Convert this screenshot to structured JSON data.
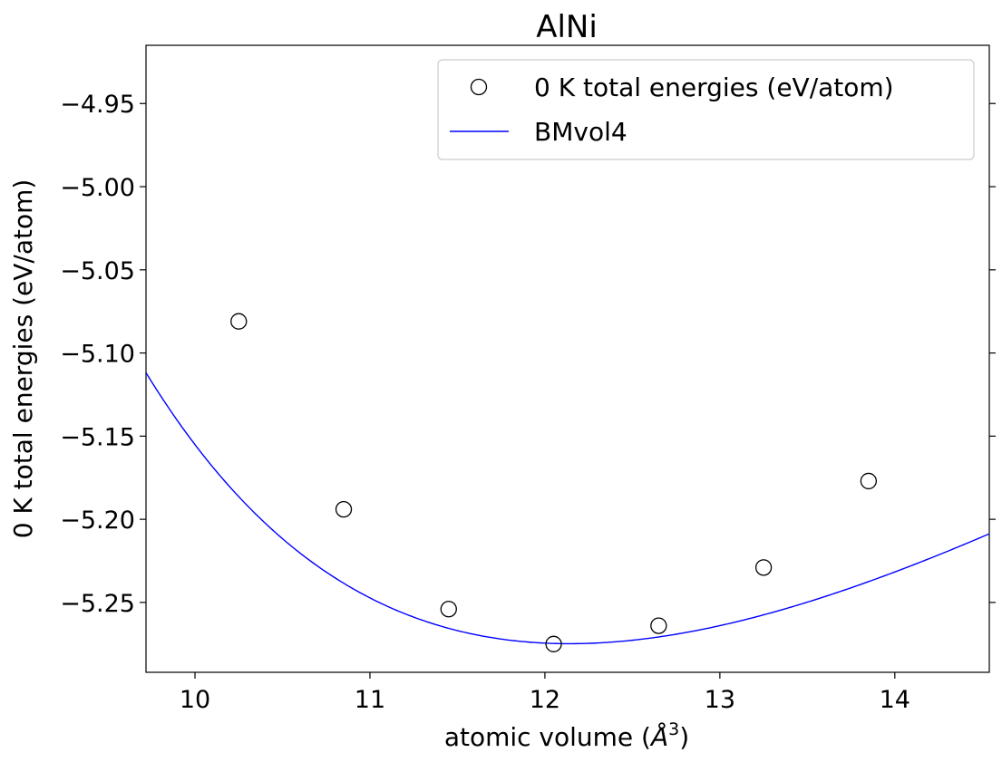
{
  "chart_data": {
    "type": "scatter",
    "title": "AlNi",
    "xlabel": "atomic volume (Å³)",
    "ylabel": "0 K total energies (eV/atom)",
    "xlim": [
      9.72,
      14.54
    ],
    "ylim": [
      -5.292,
      -4.915
    ],
    "xticks": [
      10,
      11,
      12,
      13,
      14
    ],
    "xtick_labels": [
      "10",
      "11",
      "12",
      "13",
      "14"
    ],
    "yticks": [
      -5.25,
      -5.2,
      -5.15,
      -5.1,
      -5.05,
      -5.0,
      -4.95
    ],
    "ytick_labels": [
      "−5.25",
      "−5.20",
      "−5.15",
      "−5.10",
      "−5.05",
      "−5.00",
      "−4.95"
    ],
    "grid": false,
    "legend_position": "upper-right",
    "series": [
      {
        "name": "0 K total energies (eV/atom)",
        "kind": "markers",
        "marker": "open-circle",
        "color": "#000000",
        "x": [
          10.25,
          10.85,
          11.45,
          12.05,
          12.65,
          13.25,
          13.85
        ],
        "y": [
          -5.081,
          -5.194,
          -5.254,
          -5.275,
          -5.264,
          -5.229,
          -5.177
        ]
      },
      {
        "name": "BMvol4",
        "kind": "line",
        "color": "#0000ff",
        "V0": 12.14,
        "E0": -5.2748,
        "B": 0.01706,
        "xrange": [
          9.72,
          14.54
        ]
      }
    ]
  }
}
